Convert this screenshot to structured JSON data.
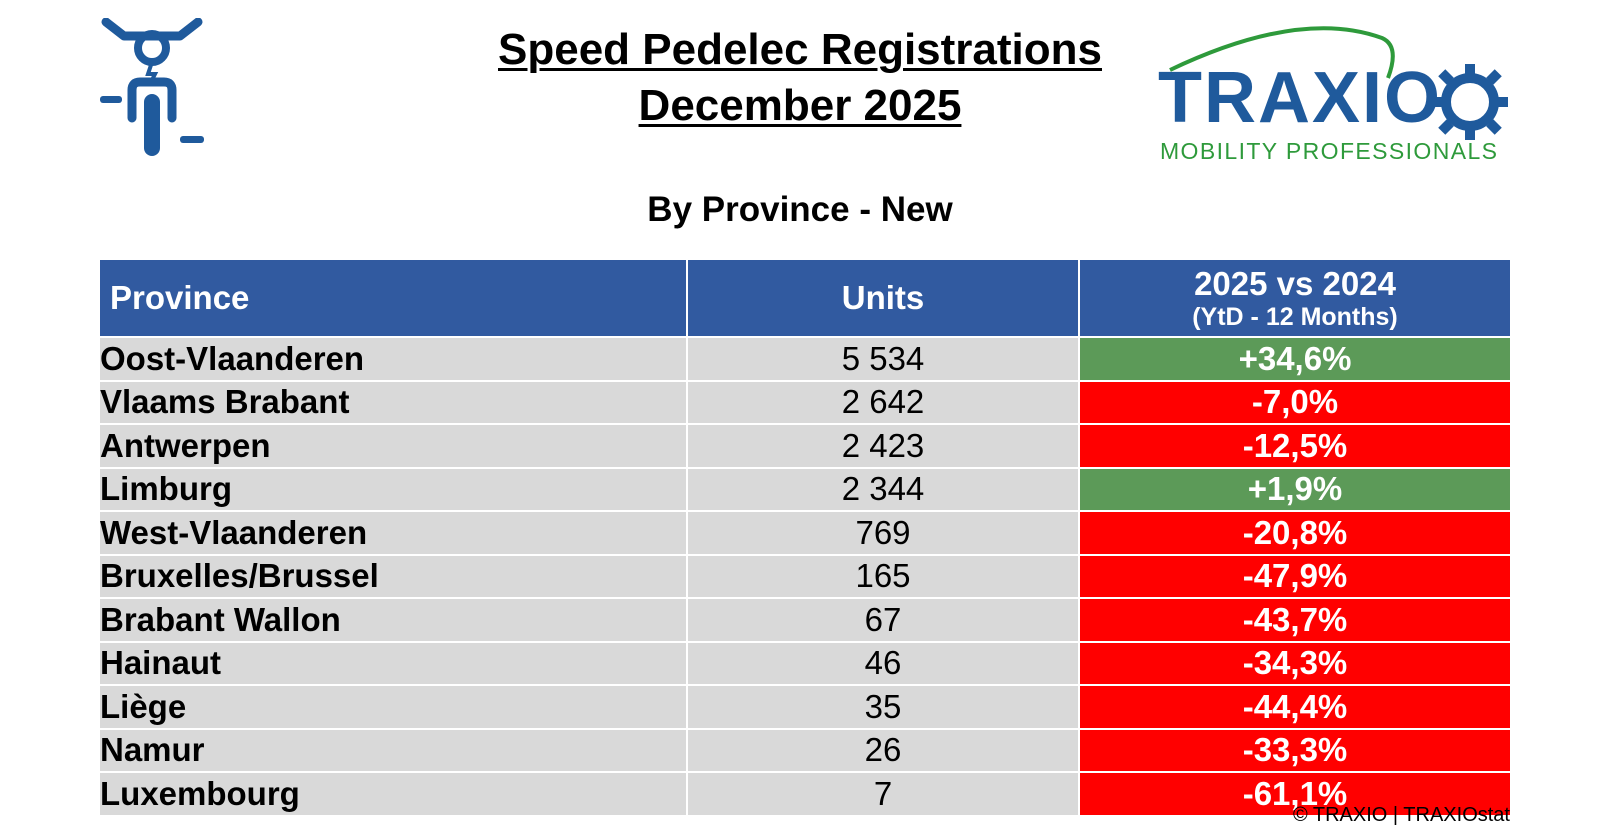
{
  "title": {
    "line1": "Speed Pedelec Registrations",
    "line2": "December 2025"
  },
  "brand": {
    "name": "TRAXIO",
    "tagline": "MOBILITY PROFESSIONALS",
    "colors": {
      "blue": "#1f5a9c",
      "green": "#2e9a3b"
    }
  },
  "subtitle": "By Province - New",
  "colors": {
    "header_bg": "#315aa0",
    "row_bg": "#d9d9d9",
    "positive": "#5c9a58",
    "negative": "#ff0000"
  },
  "chart_data": {
    "type": "table",
    "title": "Speed Pedelec Registrations December 2025",
    "subtitle": "By Province - New",
    "columns": [
      "Province",
      "Units",
      "2025 vs 2024",
      "(YtD - 12 Months)"
    ],
    "rows": [
      {
        "province": "Oost-Vlaanderen",
        "units": "5 534",
        "change": "+34,6%",
        "trend": "positive"
      },
      {
        "province": "Vlaams Brabant",
        "units": "2 642",
        "change": "-7,0%",
        "trend": "negative"
      },
      {
        "province": "Antwerpen",
        "units": "2 423",
        "change": "-12,5%",
        "trend": "negative"
      },
      {
        "province": "Limburg",
        "units": "2 344",
        "change": "+1,9%",
        "trend": "positive"
      },
      {
        "province": "West-Vlaanderen",
        "units": "769",
        "change": "-20,8%",
        "trend": "negative"
      },
      {
        "province": "Bruxelles/Brussel",
        "units": "165",
        "change": "-47,9%",
        "trend": "negative"
      },
      {
        "province": "Brabant Wallon",
        "units": "67",
        "change": "-43,7%",
        "trend": "negative"
      },
      {
        "province": "Hainaut",
        "units": "46",
        "change": "-34,3%",
        "trend": "negative"
      },
      {
        "province": "Liège",
        "units": "35",
        "change": "-44,4%",
        "trend": "negative"
      },
      {
        "province": "Namur",
        "units": "26",
        "change": "-33,3%",
        "trend": "negative"
      },
      {
        "province": "Luxembourg",
        "units": "7",
        "change": "-61,1%",
        "trend": "negative"
      }
    ]
  },
  "source": "© TRAXIO | TRAXIOstat",
  "icons": {
    "rider": "speed-pedelec-rider-icon",
    "gear": "gear-icon"
  }
}
